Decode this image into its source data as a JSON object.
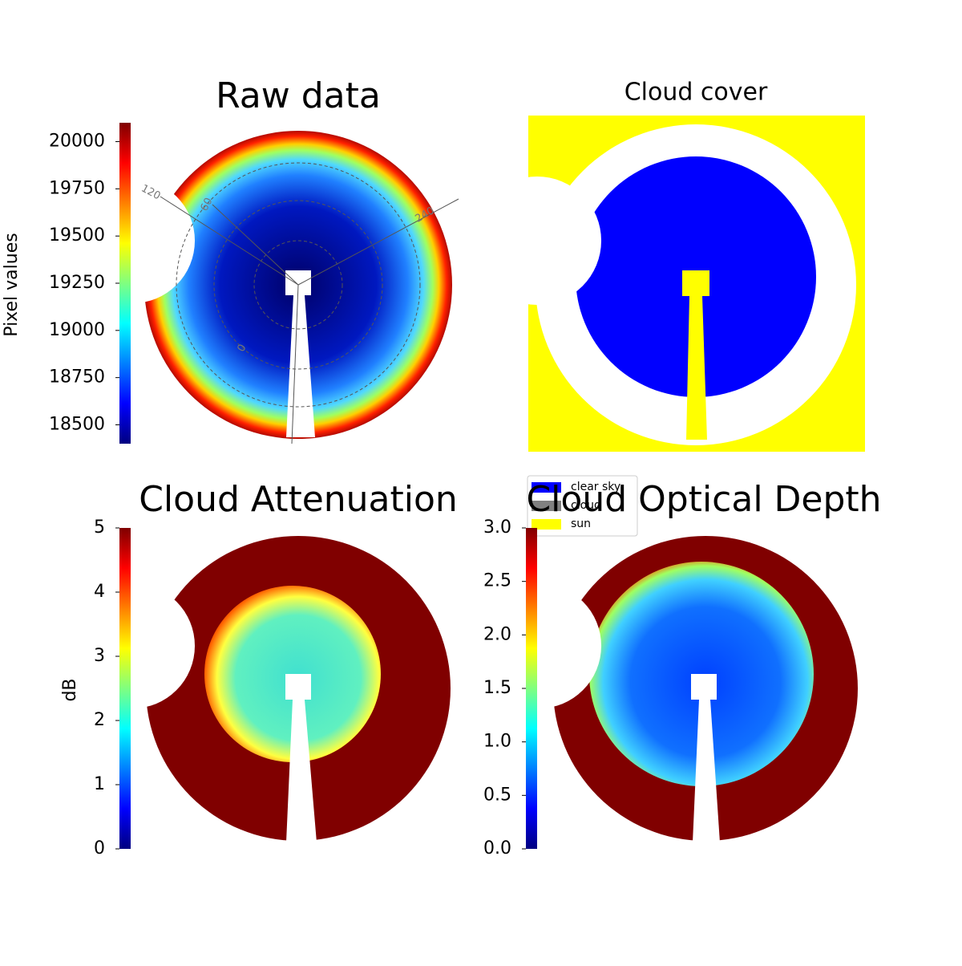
{
  "chart_data": [
    {
      "type": "image",
      "title": "Raw data",
      "colormap": "jet",
      "clabel": "Pixel values",
      "clim": [
        18400,
        20100
      ],
      "cticks": [
        18500,
        18750,
        19000,
        19250,
        19500,
        19750,
        20000
      ],
      "annotations": [
        "120",
        "60",
        "240",
        "0"
      ]
    },
    {
      "type": "image",
      "title": "Cloud cover",
      "series": [
        {
          "name": "clear sky",
          "color": "#0000ff"
        },
        {
          "name": "cloud",
          "color": "#808080"
        },
        {
          "name": "sun",
          "color": "#ffff00"
        }
      ]
    },
    {
      "type": "image",
      "title": "Cloud Attenuation",
      "colormap": "jet",
      "clabel": "dB",
      "clim": [
        0,
        5
      ],
      "cticks": [
        0,
        1,
        2,
        3,
        4,
        5
      ]
    },
    {
      "type": "image",
      "title": "Cloud Optical Depth",
      "colormap": "jet",
      "clim": [
        0,
        3
      ],
      "cticks": [
        {
          "value": 0,
          "label": "0.0"
        },
        0.5,
        {
          "value": 1,
          "label": "1.0"
        },
        1.5,
        {
          "value": 2,
          "label": "2.0"
        },
        2.5,
        {
          "value": 3,
          "label": "3.0"
        }
      ]
    }
  ]
}
